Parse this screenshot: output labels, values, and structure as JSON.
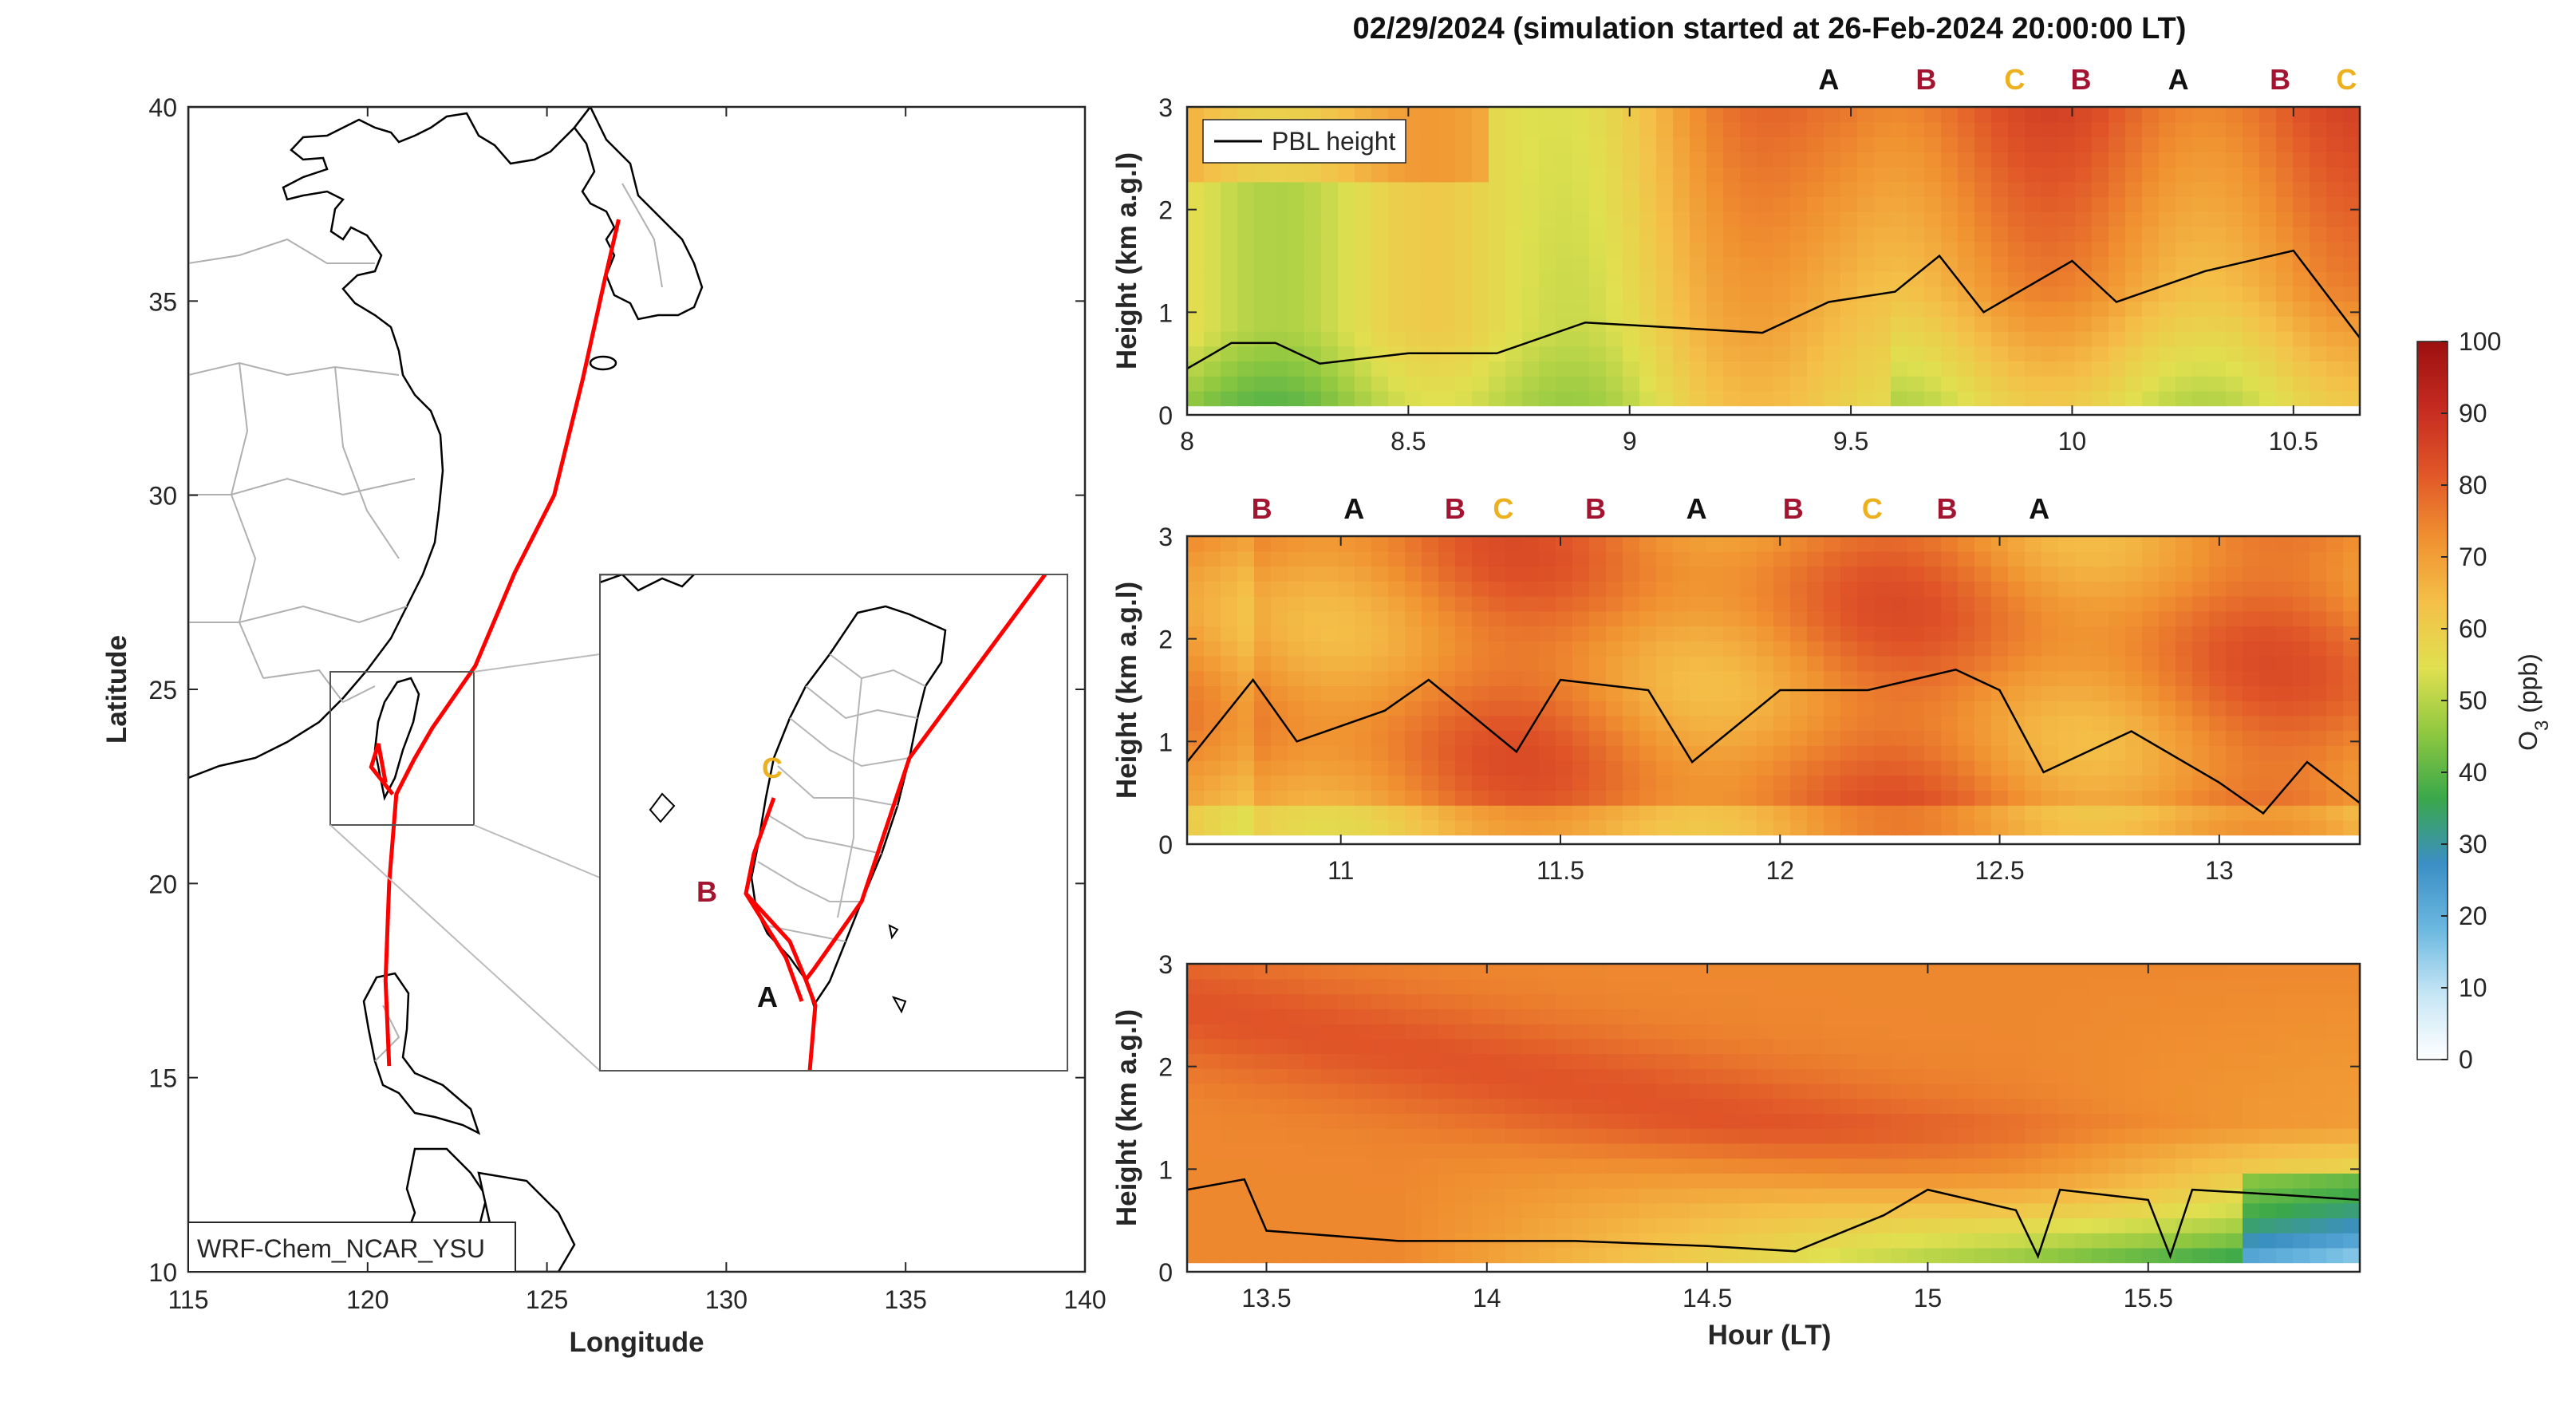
{
  "figure_title": "02/29/2024 (simulation started at 26-Feb-2024 20:00:00 LT)",
  "colors": {
    "A": "#111111",
    "B": "#A2142F",
    "C": "#EDB120",
    "track": "#FF0000",
    "pbl": "#000000"
  },
  "map": {
    "xlabel": "Longitude",
    "ylabel": "Latitude",
    "xticks": [
      "115",
      "120",
      "125",
      "130",
      "135",
      "140"
    ],
    "yticks": [
      "10",
      "15",
      "20",
      "25",
      "30",
      "35",
      "40"
    ],
    "model_label": "WRF-Chem_NCAR_YSU",
    "inset_labels": {
      "A": "A",
      "B": "B",
      "C": "C"
    },
    "track_lonlat": [
      [
        120.6,
        15.3
      ],
      [
        120.5,
        17.5
      ],
      [
        120.6,
        20.0
      ],
      [
        120.8,
        22.3
      ],
      [
        121.3,
        23.2
      ],
      [
        121.8,
        24.0
      ],
      [
        123.0,
        25.6
      ],
      [
        124.1,
        28.0
      ],
      [
        125.2,
        30.0
      ],
      [
        126.0,
        33.0
      ],
      [
        126.6,
        35.5
      ],
      [
        127.0,
        37.1
      ]
    ]
  },
  "chart_data": [
    {
      "type": "heatmap",
      "title": "",
      "ylabel": "Height (km a.g.l)",
      "xlabel": "",
      "xlim": [
        8.0,
        10.65
      ],
      "ylim": [
        0,
        3
      ],
      "xticks": [
        "8",
        "8.5",
        "9",
        "9.5",
        "10",
        "10.5"
      ],
      "yticks": [
        "0",
        "1",
        "2",
        "3"
      ],
      "legend": "PBL height",
      "markers": [
        [
          "A",
          9.45
        ],
        [
          "B",
          9.67
        ],
        [
          "C",
          9.87
        ],
        [
          "B",
          10.02
        ],
        [
          "A",
          10.24
        ],
        [
          "B",
          10.47
        ],
        [
          "C",
          10.62
        ]
      ],
      "pbl_height_km": [
        [
          8.0,
          0.45
        ],
        [
          8.1,
          0.7
        ],
        [
          8.2,
          0.7
        ],
        [
          8.3,
          0.5
        ],
        [
          8.5,
          0.6
        ],
        [
          8.7,
          0.6
        ],
        [
          8.9,
          0.9
        ],
        [
          9.1,
          0.85
        ],
        [
          9.3,
          0.8
        ],
        [
          9.45,
          1.1
        ],
        [
          9.6,
          1.2
        ],
        [
          9.7,
          1.55
        ],
        [
          9.8,
          1.0
        ],
        [
          10.0,
          1.5
        ],
        [
          10.1,
          1.1
        ],
        [
          10.3,
          1.4
        ],
        [
          10.5,
          1.6
        ],
        [
          10.65,
          0.75
        ]
      ]
    },
    {
      "type": "heatmap",
      "title": "",
      "ylabel": "Height (km a.g.l)",
      "xlabel": "",
      "xlim": [
        10.65,
        13.32
      ],
      "ylim": [
        0,
        3
      ],
      "xticks": [
        "11",
        "11.5",
        "12",
        "12.5",
        "13"
      ],
      "yticks": [
        "0",
        "1",
        "2",
        "3"
      ],
      "markers": [
        [
          "B",
          10.82
        ],
        [
          "A",
          11.03
        ],
        [
          "B",
          11.26
        ],
        [
          "C",
          11.37
        ],
        [
          "B",
          11.58
        ],
        [
          "A",
          11.81
        ],
        [
          "B",
          12.03
        ],
        [
          "C",
          12.21
        ],
        [
          "B",
          12.38
        ],
        [
          "A",
          12.59
        ]
      ],
      "pbl_height_km": [
        [
          10.65,
          0.8
        ],
        [
          10.8,
          1.6
        ],
        [
          10.9,
          1.0
        ],
        [
          11.1,
          1.3
        ],
        [
          11.2,
          1.6
        ],
        [
          11.4,
          0.9
        ],
        [
          11.5,
          1.6
        ],
        [
          11.7,
          1.5
        ],
        [
          11.8,
          0.8
        ],
        [
          12.0,
          1.5
        ],
        [
          12.2,
          1.5
        ],
        [
          12.4,
          1.7
        ],
        [
          12.5,
          1.5
        ],
        [
          12.6,
          0.7
        ],
        [
          12.8,
          1.1
        ],
        [
          13.0,
          0.6
        ],
        [
          13.1,
          0.3
        ],
        [
          13.2,
          0.8
        ],
        [
          13.32,
          0.4
        ]
      ]
    },
    {
      "type": "heatmap",
      "title": "",
      "ylabel": "Height (km a.g.l)",
      "xlabel": "Hour (LT)",
      "xlim": [
        13.32,
        15.98
      ],
      "ylim": [
        0,
        3
      ],
      "xticks": [
        "13.5",
        "14",
        "14.5",
        "15",
        "15.5"
      ],
      "yticks": [
        "0",
        "1",
        "2",
        "3"
      ],
      "pbl_height_km": [
        [
          13.32,
          0.8
        ],
        [
          13.45,
          0.9
        ],
        [
          13.5,
          0.4
        ],
        [
          13.8,
          0.3
        ],
        [
          14.2,
          0.3
        ],
        [
          14.5,
          0.25
        ],
        [
          14.7,
          0.2
        ],
        [
          14.9,
          0.55
        ],
        [
          15.0,
          0.8
        ],
        [
          15.2,
          0.6
        ],
        [
          15.25,
          0.15
        ],
        [
          15.3,
          0.8
        ],
        [
          15.5,
          0.7
        ],
        [
          15.55,
          0.15
        ],
        [
          15.6,
          0.8
        ],
        [
          15.8,
          0.75
        ],
        [
          15.98,
          0.7
        ]
      ]
    }
  ],
  "colorbar": {
    "label": "O3 (ppb)",
    "ticks": [
      "0",
      "10",
      "20",
      "30",
      "40",
      "50",
      "60",
      "70",
      "80",
      "90",
      "100"
    ],
    "stops": [
      "#ffffff",
      "#c6e6f5",
      "#6bb8e0",
      "#3b8fc5",
      "#3aa84a",
      "#8fc840",
      "#e0e050",
      "#f4c048",
      "#f09030",
      "#e05528",
      "#c42a20",
      "#9c1010"
    ]
  }
}
